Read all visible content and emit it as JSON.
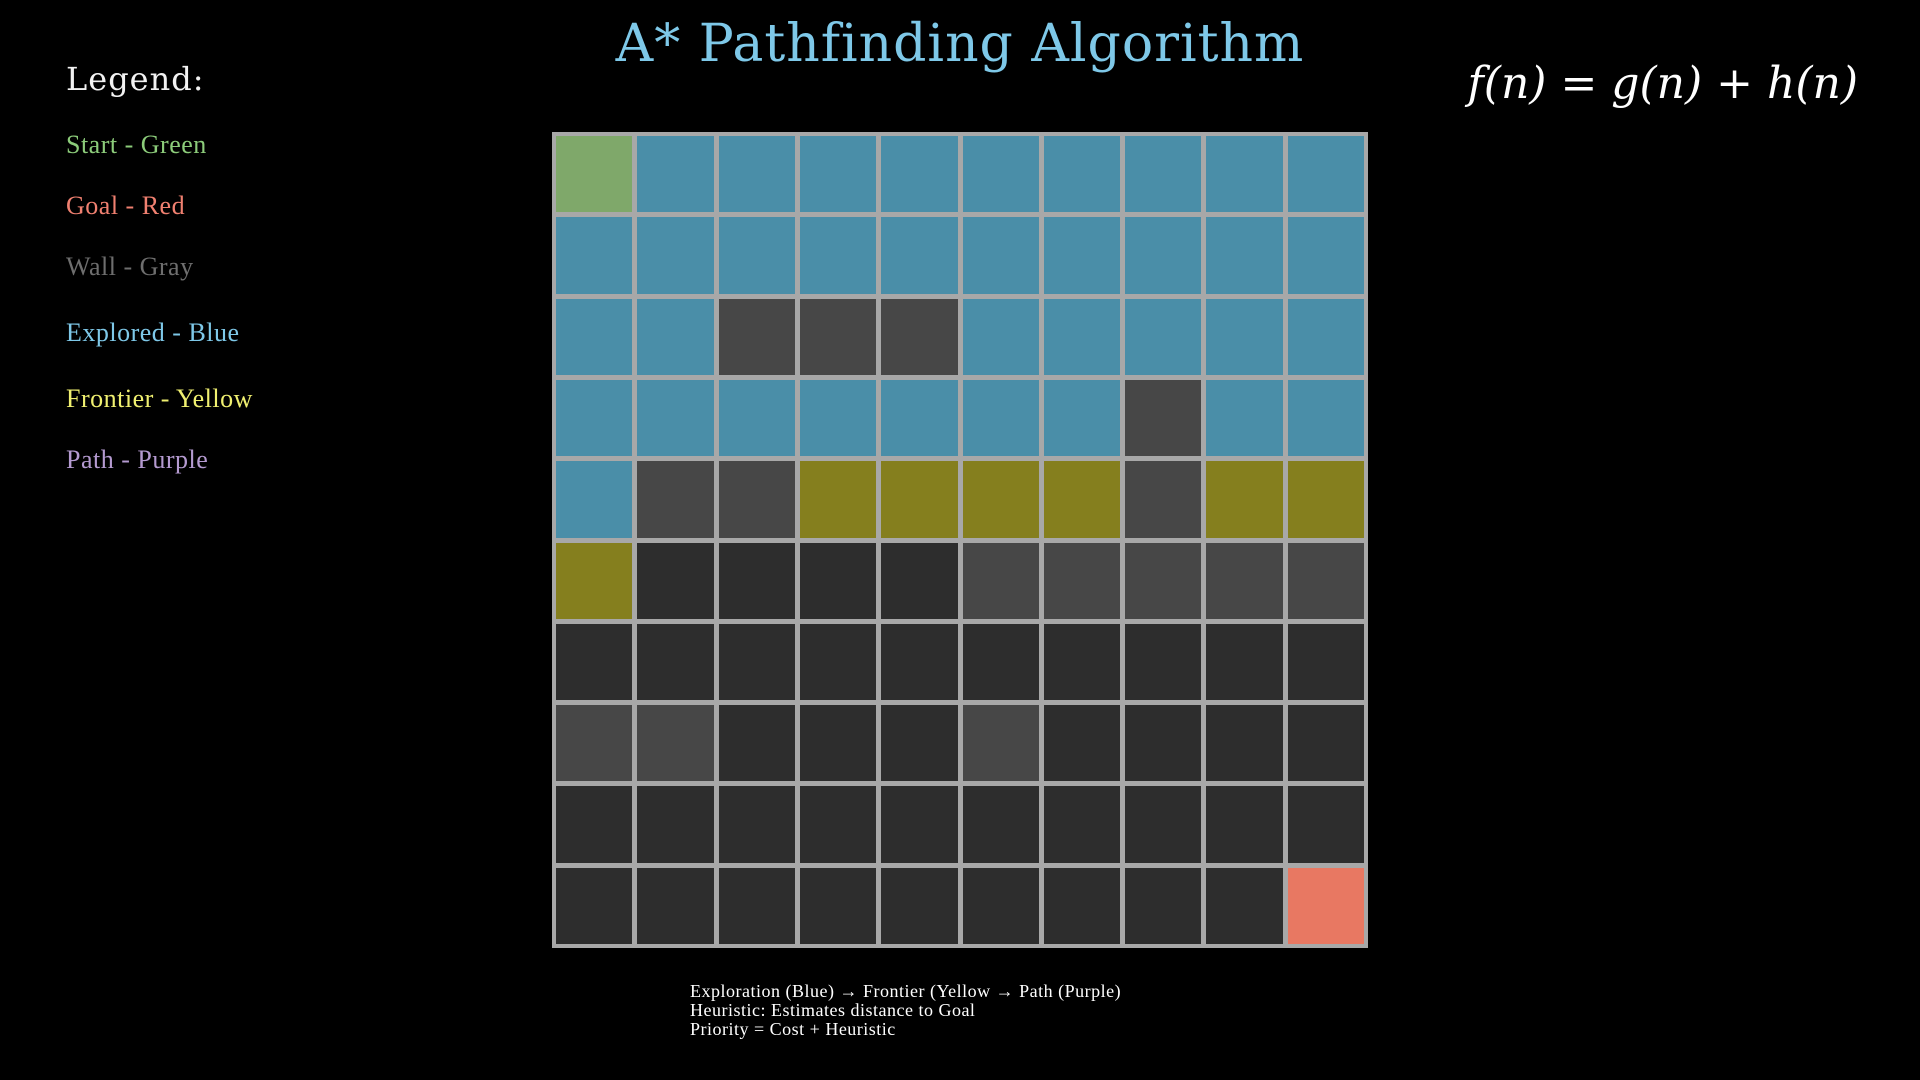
{
  "title": "A* Pathfinding Algorithm",
  "formula": "f(n) = g(n) + h(n)",
  "legend": {
    "heading": "Legend:",
    "items": [
      {
        "label": "Start - Green",
        "color": "#8ccc7a"
      },
      {
        "label": "Goal - Red",
        "color": "#f08070"
      },
      {
        "label": "Wall - Gray",
        "color": "#6e6e6e"
      },
      {
        "label": "Explored - Blue",
        "color": "#7ec8e8"
      },
      {
        "label": "Frontier - Yellow",
        "color": "#f0f070"
      },
      {
        "label": "Path - Purple",
        "color": "#b49ad0"
      }
    ]
  },
  "cell_colors": {
    "S": "#7fa86a",
    "G": "#e87862",
    "W": "#474747",
    "E": "#4a8ea8",
    "F": "#857f1e",
    "U": "#2d2d2d"
  },
  "grid": [
    [
      "S",
      "E",
      "E",
      "E",
      "E",
      "E",
      "E",
      "E",
      "E",
      "E"
    ],
    [
      "E",
      "E",
      "E",
      "E",
      "E",
      "E",
      "E",
      "E",
      "E",
      "E"
    ],
    [
      "E",
      "E",
      "W",
      "W",
      "W",
      "E",
      "E",
      "E",
      "E",
      "E"
    ],
    [
      "E",
      "E",
      "E",
      "E",
      "E",
      "E",
      "E",
      "W",
      "E",
      "E"
    ],
    [
      "E",
      "W",
      "W",
      "F",
      "F",
      "F",
      "F",
      "W",
      "F",
      "F"
    ],
    [
      "F",
      "U",
      "U",
      "U",
      "U",
      "W",
      "W",
      "W",
      "W",
      "W"
    ],
    [
      "U",
      "U",
      "U",
      "U",
      "U",
      "U",
      "U",
      "U",
      "U",
      "U"
    ],
    [
      "W",
      "W",
      "U",
      "U",
      "U",
      "W",
      "U",
      "U",
      "U",
      "U"
    ],
    [
      "U",
      "U",
      "U",
      "U",
      "U",
      "U",
      "U",
      "U",
      "U",
      "U"
    ],
    [
      "U",
      "U",
      "U",
      "U",
      "U",
      "U",
      "U",
      "U",
      "U",
      "G"
    ]
  ],
  "notes": [
    "Exploration (Blue) → Frontier (Yellow → Path (Purple)",
    "Heuristic: Estimates distance to Goal",
    "Priority = Cost + Heuristic"
  ]
}
